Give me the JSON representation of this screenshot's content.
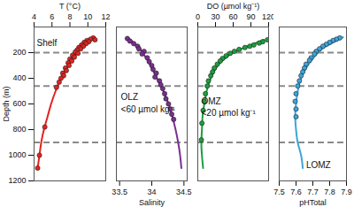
{
  "chart_data": [
    {
      "type": "scatter",
      "xlabel": "T (°C)",
      "ylabel": "Depth (m)",
      "xlim": [
        4,
        12
      ],
      "xticks": [
        4,
        6,
        8,
        10,
        12
      ],
      "ylim": [
        0,
        1200
      ],
      "yticks": [
        200,
        400,
        600,
        800,
        1000,
        1200
      ],
      "tick_labels": true,
      "color": "#e4231f",
      "marker": "circle",
      "points": {
        "x": [
          10.6,
          10.3,
          10.8,
          9.9,
          10.1,
          9.6,
          9.8,
          9.3,
          9.5,
          9.0,
          9.2,
          8.8,
          8.6,
          8.9,
          8.3,
          8.5,
          8.0,
          8.2,
          7.8,
          7.9,
          7.5,
          7.6,
          7.2,
          7.3,
          7.0,
          6.8,
          6.5,
          5.2,
          4.6,
          4.4
        ],
        "y": [
          85,
          95,
          100,
          105,
          115,
          120,
          130,
          140,
          150,
          160,
          170,
          180,
          195,
          205,
          220,
          235,
          250,
          265,
          280,
          300,
          320,
          340,
          360,
          380,
          400,
          430,
          470,
          780,
          1000,
          1100
        ]
      },
      "curve": {
        "x": [
          10.8,
          9.6,
          8.8,
          7.8,
          7.0,
          6.4,
          5.9,
          5.5,
          5.1,
          4.8,
          4.6,
          4.4
        ],
        "y": [
          80,
          150,
          200,
          300,
          400,
          500,
          600,
          700,
          800,
          900,
          1000,
          1100
        ]
      },
      "boundaries": [
        200,
        460,
        900
      ],
      "annotations": [
        {
          "text": "Shelf",
          "x": 4.3,
          "y": 125
        }
      ]
    },
    {
      "type": "scatter",
      "xlabel": "Salinity",
      "xlim": [
        33.45,
        34.55
      ],
      "xticks": [
        33.5,
        34,
        34.5
      ],
      "ylim": [
        0,
        1200
      ],
      "tick_labels": "x",
      "color": "#7a2f8f",
      "marker": "circle",
      "points": {
        "x": [
          33.62,
          33.66,
          33.72,
          33.78,
          33.8,
          33.88,
          33.85,
          33.93,
          33.96,
          34.0,
          34.02,
          34.07,
          34.05,
          34.12,
          34.14,
          34.17,
          34.2,
          34.22,
          34.26,
          34.29,
          34.31,
          34.34
        ],
        "y": [
          90,
          110,
          130,
          150,
          170,
          190,
          210,
          240,
          270,
          300,
          330,
          360,
          390,
          420,
          450,
          480,
          520,
          560,
          600,
          640,
          680,
          720
        ]
      },
      "curve": {
        "x": [
          33.62,
          33.78,
          33.86,
          33.98,
          34.08,
          34.18,
          34.26,
          34.32,
          34.37,
          34.41,
          34.44,
          34.46
        ],
        "y": [
          80,
          150,
          200,
          300,
          400,
          500,
          600,
          700,
          800,
          900,
          1000,
          1100
        ]
      },
      "boundaries": [
        200,
        460,
        900
      ],
      "annotations": [
        {
          "text": "OLZ",
          "x": 33.52,
          "y": 550
        },
        {
          "text": "<60 µmol kg⁻¹",
          "x": 33.52,
          "y": 640
        }
      ]
    },
    {
      "type": "scatter",
      "xlabel": "DO (µmol kg⁻¹)",
      "xlim": [
        0,
        120
      ],
      "xticks": [
        0,
        30,
        60,
        90,
        120
      ],
      "ylim": [
        0,
        1200
      ],
      "tick_labels": "x",
      "color": "#1e9e3e",
      "marker": "circle",
      "points": {
        "x": [
          118,
          110,
          104,
          95,
          88,
          80,
          70,
          62,
          55,
          48,
          42,
          38,
          33,
          28,
          25,
          22,
          18,
          16,
          13,
          11,
          9,
          7,
          6
        ],
        "y": [
          100,
          115,
          125,
          140,
          150,
          160,
          175,
          190,
          205,
          225,
          245,
          265,
          290,
          320,
          350,
          380,
          420,
          460,
          520,
          580,
          650,
          750,
          880
        ]
      },
      "curve": {
        "x": [
          112,
          85,
          60,
          45,
          34,
          22,
          15,
          11,
          8,
          7,
          6,
          7,
          9
        ],
        "y": [
          100,
          150,
          200,
          250,
          300,
          400,
          500,
          600,
          700,
          800,
          900,
          1000,
          1100
        ]
      },
      "boundaries": [
        200,
        460,
        900
      ],
      "annotations": [
        {
          "text": "OMZ",
          "x": 6,
          "y": 580
        },
        {
          "text": "<20 µmol kg⁻¹",
          "x": 6,
          "y": 670
        }
      ]
    },
    {
      "type": "scatter",
      "xlabel": "pHTotal",
      "xlim": [
        7.5,
        7.9
      ],
      "xticks": [
        7.5,
        7.6,
        7.7,
        7.8,
        7.9
      ],
      "ylim": [
        0,
        1200
      ],
      "tick_labels": "x",
      "color": "#3da5dc",
      "marker": "circle",
      "points": {
        "x": [
          7.86,
          7.84,
          7.82,
          7.8,
          7.78,
          7.76,
          7.74,
          7.72,
          7.71,
          7.69,
          7.68,
          7.66,
          7.65,
          7.64,
          7.63,
          7.62,
          7.61,
          7.6,
          7.595,
          7.6,
          7.6
        ],
        "y": [
          85,
          95,
          105,
          120,
          135,
          150,
          170,
          190,
          210,
          240,
          260,
          290,
          320,
          350,
          380,
          420,
          460,
          520,
          580,
          640,
          700
        ]
      },
      "curve": {
        "x": [
          7.88,
          7.78,
          7.73,
          7.67,
          7.63,
          7.61,
          7.6,
          7.595,
          7.6,
          7.61,
          7.63,
          7.64
        ],
        "y": [
          80,
          150,
          200,
          300,
          400,
          500,
          600,
          700,
          800,
          900,
          1000,
          1100
        ]
      },
      "boundaries": [
        200,
        460,
        900
      ],
      "annotations": [
        {
          "text": "LOMZ",
          "x": 7.66,
          "y": 1080
        }
      ]
    }
  ]
}
